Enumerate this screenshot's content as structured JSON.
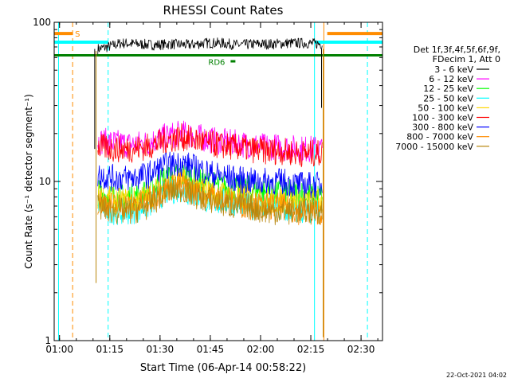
{
  "chart_data": {
    "type": "line",
    "title": "RHESSI Count Rates",
    "xlabel": "Start Time (06-Apr-14 00:58:22)",
    "ylabel": "Count Rate (s⁻¹ detector segment⁻¹)",
    "x_unit": "minutes after 00:58:22",
    "xlim": [
      0,
      98
    ],
    "ylim": [
      1,
      100
    ],
    "y_scale": "log",
    "x_ticks": [
      {
        "label": "01:00",
        "min": 1.6
      },
      {
        "label": "01:15",
        "min": 16.6
      },
      {
        "label": "01:30",
        "min": 31.6
      },
      {
        "label": "01:45",
        "min": 46.6
      },
      {
        "label": "02:00",
        "min": 61.6
      },
      {
        "label": "02:15",
        "min": 76.6
      },
      {
        "label": "02:30",
        "min": 91.6
      }
    ],
    "y_ticks": [
      {
        "label": "1",
        "value": 1
      },
      {
        "label": "10",
        "value": 10
      },
      {
        "label": "100",
        "value": 100
      }
    ],
    "legend_header": [
      "Det 1f,3f,4f,5f,6f,9f,",
      "FDecim 1, Att 0"
    ],
    "series": [
      {
        "name": "3 - 6 keV",
        "color": "#000000",
        "x": [
          13,
          16,
          20,
          25,
          30,
          35,
          40,
          45,
          50,
          55,
          60,
          65,
          70,
          75,
          80
        ],
        "values": [
          68,
          70,
          74,
          73,
          72,
          73,
          72,
          74,
          74,
          72,
          73,
          73,
          74,
          74,
          73
        ]
      },
      {
        "name": "6 - 12 keV",
        "color": "#ff00ff",
        "x": [
          13,
          18,
          23,
          28,
          33,
          38,
          43,
          48,
          53,
          58,
          63,
          68,
          73,
          78,
          80
        ],
        "values": [
          18,
          17.5,
          17,
          17.5,
          19,
          20,
          19,
          18,
          17.5,
          17,
          16.5,
          16.5,
          16,
          16,
          16
        ]
      },
      {
        "name": "12 - 25 keV",
        "color": "#00ff00",
        "x": [
          13,
          18,
          23,
          28,
          33,
          38,
          43,
          48,
          53,
          58,
          63,
          68,
          73,
          78,
          80
        ],
        "values": [
          8.5,
          8,
          8,
          8.5,
          10.5,
          11,
          10,
          9.5,
          9,
          9,
          8.5,
          8.5,
          8.5,
          8,
          8
        ]
      },
      {
        "name": "25 - 50 keV",
        "color": "#00ffff",
        "x": [
          13,
          18,
          23,
          28,
          33,
          38,
          43,
          48,
          53,
          58,
          63,
          68,
          73,
          78,
          80
        ],
        "values": [
          7,
          6.5,
          6.5,
          7,
          8.5,
          9,
          8,
          7.5,
          7.5,
          7,
          7,
          6.5,
          6.5,
          6.5,
          6.5
        ]
      },
      {
        "name": "50 - 100 keV",
        "color": "#ffd700",
        "x": [
          13,
          18,
          23,
          28,
          33,
          38,
          43,
          48,
          53,
          58,
          63,
          68,
          73,
          78,
          80
        ],
        "values": [
          8,
          7.5,
          7.5,
          8,
          9.5,
          10,
          9,
          8.5,
          8,
          8,
          7.5,
          7.5,
          7.5,
          7.5,
          7.5
        ]
      },
      {
        "name": "100 - 300 keV",
        "color": "#ff0000",
        "x": [
          13,
          18,
          23,
          28,
          33,
          38,
          43,
          48,
          53,
          58,
          63,
          68,
          73,
          78,
          80
        ],
        "values": [
          16.5,
          16,
          16,
          16.5,
          18,
          19,
          18,
          17,
          16.5,
          16,
          15.5,
          15.5,
          15,
          15,
          15
        ]
      },
      {
        "name": "300 - 800 keV",
        "color": "#0000ff",
        "x": [
          13,
          18,
          23,
          28,
          33,
          38,
          43,
          48,
          53,
          58,
          63,
          68,
          73,
          78,
          80
        ],
        "values": [
          11,
          10.5,
          10.5,
          11,
          12.5,
          13,
          12,
          11,
          10.5,
          10,
          10,
          10,
          9.5,
          9.5,
          9.5
        ]
      },
      {
        "name": "800 - 7000 keV",
        "color": "#ff8c00",
        "x": [
          13,
          18,
          23,
          28,
          33,
          38,
          43,
          48,
          53,
          58,
          63,
          68,
          73,
          78,
          80
        ],
        "values": [
          7.5,
          7,
          7,
          7.5,
          9,
          9.5,
          8.5,
          8,
          7.5,
          7,
          7,
          7,
          6.5,
          6.5,
          6.5
        ]
      },
      {
        "name": "7000 - 15000 keV",
        "color": "#b8860b",
        "x": [
          13,
          18,
          23,
          28,
          33,
          38,
          43,
          48,
          53,
          58,
          63,
          68,
          73,
          78,
          80
        ],
        "values": [
          7,
          6.5,
          6.5,
          7,
          8.5,
          9,
          8,
          7.5,
          7,
          7,
          6.5,
          6.5,
          6.5,
          6.5,
          6.5
        ]
      }
    ],
    "flags": [
      {
        "label": "S",
        "color": "#ff8c00",
        "value": 85
      },
      {
        "label": "RD6",
        "color": "#008000",
        "value": 62
      }
    ],
    "footer_timestamp": "22-Oct-2021 04:02"
  },
  "colors": {
    "night": "#00ffff",
    "saa": "#ff8c00",
    "decim": "#008000",
    "axis": "#000000"
  }
}
